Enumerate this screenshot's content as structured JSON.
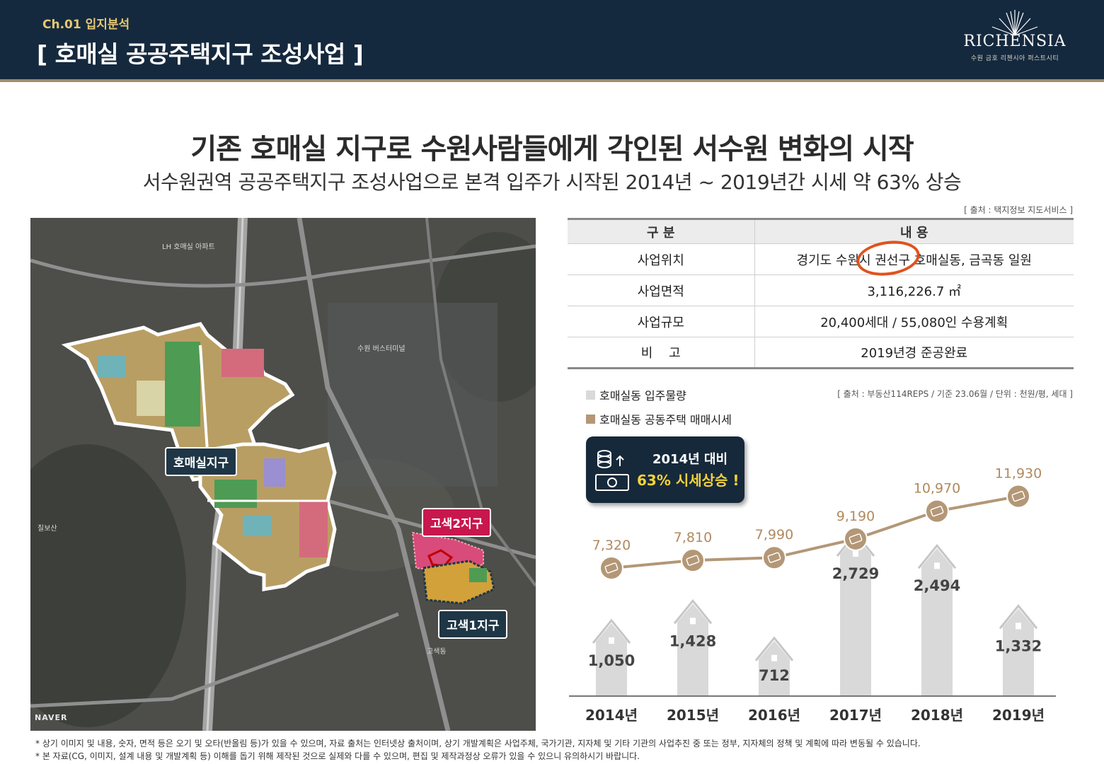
{
  "header": {
    "chapter": "Ch.01 입지분석",
    "title": "[ 호매실 공공주택지구 조성사업 ]",
    "brand_name": "RICHENSIA",
    "brand_sub": "수원 금호 리첸시아 퍼스트시티"
  },
  "headline": "기존 호매실 지구로 수원사람들에게 각인된 서수원 변화의 시작",
  "subheadline": "서수원권역 공공주택지구 조성사업으로 본격 입주가 시작된 2014년 ~ 2019년간 시세 약 63% 상승",
  "map": {
    "labels": {
      "homaesil": "호매실지구",
      "gosaek2": "고색2지구",
      "gosaek1": "고색1지구"
    },
    "watermark": "NAVER"
  },
  "table": {
    "source": "[ 출처 : 택지정보 지도서비스 ]",
    "headers": [
      "구 분",
      "내 용"
    ],
    "rows": [
      [
        "사업위치",
        "경기도 수원시 권선구 호매실동, 금곡동 일원"
      ],
      [
        "사업면적",
        "3,116,226.7 ㎡"
      ],
      [
        "사업규모",
        "20,400세대 / 55,080인 수용계획"
      ],
      [
        "비    고",
        "2019년경 준공완료"
      ]
    ]
  },
  "legend": {
    "supply": "호매실동 입주물량",
    "price": "호매실동 공동주택 매매시세"
  },
  "chart_source": "[ 출처 : 부동산114REPS / 기준 23.06월 / 단위 : 천원/평, 세대 ]",
  "callout": {
    "line1": "2014년 대비",
    "line2": "63% 시세상승 !"
  },
  "colors": {
    "navy": "#15293e",
    "gold": "#a08d6e",
    "supply_bar": "#d9d9d9",
    "price_line": "#b39776",
    "callout_text": "#f3d23b"
  },
  "chart_data": {
    "type": "bar",
    "categories": [
      "2014년",
      "2015년",
      "2016년",
      "2017년",
      "2018년",
      "2019년"
    ],
    "series": [
      {
        "name": "호매실동 입주물량",
        "type": "bar",
        "values": [
          1050,
          1428,
          712,
          2729,
          2494,
          1332
        ]
      },
      {
        "name": "호매실동 공동주택 매매시세",
        "type": "line",
        "values": [
          7320,
          7810,
          7990,
          9190,
          10970,
          11930
        ]
      }
    ],
    "value_labels": {
      "supply": [
        "1,050",
        "1,428",
        "712",
        "2,729",
        "2,494",
        "1,332"
      ],
      "price": [
        "7,320",
        "7,810",
        "7,990",
        "9,190",
        "10,970",
        "11,930"
      ]
    }
  },
  "footnotes": [
    "* 상기 이미지 및 내용, 숫자, 면적 등은 오기 및 오타(반올림 등)가 있을 수 있으며, 자료 출처는 인터넷상 출처이며, 상기 개발계획은 사업주체, 국가기관, 지자체 및 기타 기관의 사업추진 중 또는 정부, 지자체의 정책 및 계획에 따라 변동될 수 있습니다.",
    "* 본 자료(CG, 이미지, 설계 내용 및 개발계획 등) 이해를 돕기 위해 제작된 것으로 실제와 다를 수 있으며, 편집 및 제작과정상 오류가 있을 수 있으니 유의하시기 바랍니다."
  ]
}
